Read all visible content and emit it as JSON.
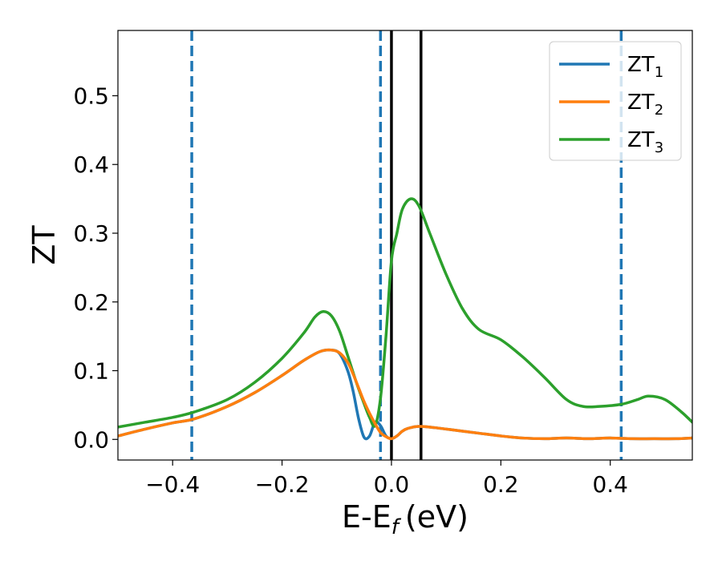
{
  "chart_data": {
    "type": "line",
    "xlabel": "E-E",
    "xlabel_subscript": "f",
    "xlabel_unit": "(eV)",
    "ylabel": "ZT",
    "xlim": [
      -0.5,
      0.55
    ],
    "ylim": [
      -0.03,
      0.595
    ],
    "grid": false,
    "legend_position": "top-right",
    "x_ticks": [
      {
        "value": -0.4,
        "label": "−0.4"
      },
      {
        "value": -0.2,
        "label": "−0.2"
      },
      {
        "value": 0.0,
        "label": "0.0"
      },
      {
        "value": 0.2,
        "label": "0.2"
      },
      {
        "value": 0.4,
        "label": "0.4"
      }
    ],
    "y_ticks": [
      {
        "value": 0.0,
        "label": "0.0"
      },
      {
        "value": 0.1,
        "label": "0.1"
      },
      {
        "value": 0.2,
        "label": "0.2"
      },
      {
        "value": 0.3,
        "label": "0.3"
      },
      {
        "value": 0.4,
        "label": "0.4"
      },
      {
        "value": 0.5,
        "label": "0.5"
      }
    ],
    "series": [
      {
        "name": "ZT",
        "subscript": "1",
        "color": "#1f77b4",
        "x": [
          -0.5,
          -0.45,
          -0.4,
          -0.36,
          -0.3,
          -0.25,
          -0.2,
          -0.16,
          -0.13,
          -0.11,
          -0.095,
          -0.08,
          -0.07,
          -0.06,
          -0.05,
          -0.04,
          -0.03,
          -0.02,
          -0.01,
          0.0,
          0.01,
          0.02,
          0.03,
          0.05,
          0.08,
          0.12,
          0.16,
          0.2,
          0.24,
          0.28,
          0.32,
          0.36,
          0.4,
          0.44,
          0.48,
          0.52,
          0.55
        ],
        "y": [
          0.005,
          0.015,
          0.024,
          0.03,
          0.048,
          0.068,
          0.093,
          0.115,
          0.128,
          0.13,
          0.125,
          0.1,
          0.07,
          0.03,
          0.003,
          0.005,
          0.025,
          0.02,
          0.005,
          0.001,
          0.005,
          0.012,
          0.016,
          0.019,
          0.017,
          0.013,
          0.009,
          0.005,
          0.002,
          0.001,
          0.002,
          0.001,
          0.002,
          0.001,
          0.001,
          0.001,
          0.002
        ]
      },
      {
        "name": "ZT",
        "subscript": "2",
        "color": "#ff7f0e",
        "x": [
          -0.5,
          -0.45,
          -0.4,
          -0.36,
          -0.3,
          -0.25,
          -0.2,
          -0.16,
          -0.13,
          -0.11,
          -0.095,
          -0.08,
          -0.07,
          -0.06,
          -0.05,
          -0.04,
          -0.03,
          -0.02,
          -0.01,
          0.0,
          0.01,
          0.02,
          0.03,
          0.05,
          0.08,
          0.12,
          0.16,
          0.2,
          0.24,
          0.28,
          0.32,
          0.36,
          0.4,
          0.44,
          0.48,
          0.52,
          0.55
        ],
        "y": [
          0.005,
          0.015,
          0.024,
          0.03,
          0.048,
          0.068,
          0.093,
          0.115,
          0.128,
          0.13,
          0.126,
          0.112,
          0.095,
          0.075,
          0.055,
          0.038,
          0.023,
          0.01,
          0.004,
          0.001,
          0.005,
          0.012,
          0.016,
          0.019,
          0.017,
          0.013,
          0.009,
          0.005,
          0.002,
          0.001,
          0.002,
          0.001,
          0.002,
          0.001,
          0.001,
          0.001,
          0.002
        ]
      },
      {
        "name": "ZT",
        "subscript": "3",
        "color": "#2ca02c",
        "x": [
          -0.5,
          -0.45,
          -0.4,
          -0.36,
          -0.3,
          -0.25,
          -0.2,
          -0.16,
          -0.14,
          -0.125,
          -0.11,
          -0.095,
          -0.08,
          -0.065,
          -0.05,
          -0.04,
          -0.03,
          -0.02,
          -0.01,
          0.0,
          0.01,
          0.02,
          0.035,
          0.05,
          0.07,
          0.1,
          0.13,
          0.16,
          0.2,
          0.24,
          0.28,
          0.32,
          0.35,
          0.38,
          0.42,
          0.45,
          0.47,
          0.5,
          0.53,
          0.55
        ],
        "y": [
          0.018,
          0.025,
          0.032,
          0.04,
          0.058,
          0.083,
          0.118,
          0.155,
          0.178,
          0.186,
          0.18,
          0.158,
          0.122,
          0.085,
          0.052,
          0.032,
          0.02,
          0.06,
          0.15,
          0.26,
          0.3,
          0.335,
          0.35,
          0.34,
          0.3,
          0.24,
          0.19,
          0.16,
          0.145,
          0.12,
          0.09,
          0.058,
          0.048,
          0.048,
          0.051,
          0.058,
          0.063,
          0.058,
          0.04,
          0.025
        ]
      }
    ],
    "vertical_lines": [
      {
        "x": -0.365,
        "style": "dashed",
        "color": "#1f77b4"
      },
      {
        "x": -0.02,
        "style": "dashed",
        "color": "#1f77b4"
      },
      {
        "x": 0.0,
        "style": "solid",
        "color": "#000000"
      },
      {
        "x": 0.054,
        "style": "solid",
        "color": "#000000"
      },
      {
        "x": 0.42,
        "style": "dashed",
        "color": "#1f77b4"
      }
    ]
  }
}
